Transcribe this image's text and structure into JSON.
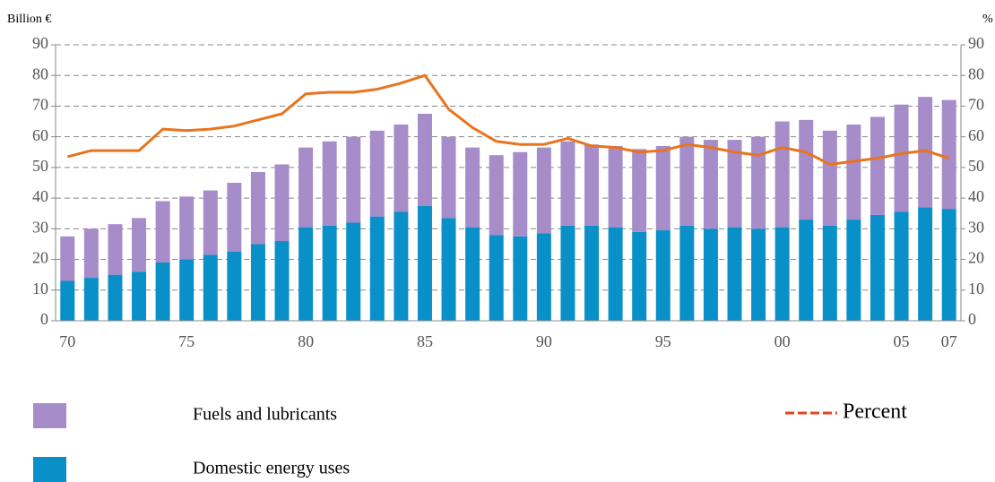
{
  "chart_data": {
    "type": "bar",
    "y_label": "Billion €",
    "y2_label": "%",
    "categories": [
      "70",
      null,
      null,
      null,
      null,
      "75",
      null,
      null,
      null,
      null,
      "80",
      null,
      null,
      null,
      null,
      "85",
      null,
      null,
      null,
      null,
      "90",
      null,
      null,
      null,
      null,
      "95",
      null,
      null,
      null,
      null,
      "00",
      null,
      null,
      null,
      null,
      "05",
      null,
      "07"
    ],
    "series": [
      {
        "name": "Domestic energy uses",
        "color": "#0a90c8",
        "values": [
          13,
          14,
          15,
          16,
          19,
          20,
          21.5,
          22.5,
          25,
          26,
          30.5,
          31,
          32,
          34,
          35.5,
          37.5,
          33.5,
          30.5,
          28,
          27.5,
          28.5,
          31,
          31,
          30.5,
          29,
          29.5,
          31,
          30,
          30.5,
          30,
          30.5,
          33,
          31,
          33,
          34.5,
          35.5,
          37,
          36.5
        ]
      },
      {
        "name": "Fuels and lubricants",
        "color": "#a68cc9",
        "values": [
          14.5,
          16,
          16.5,
          17.5,
          20,
          20.5,
          21,
          22.5,
          23.5,
          25,
          26,
          27.5,
          28,
          28,
          28.5,
          30,
          26.5,
          26,
          26,
          27.5,
          28,
          27.5,
          26.5,
          26.5,
          27,
          27.5,
          29,
          29,
          28.5,
          30,
          34.5,
          32.5,
          31,
          31,
          32,
          35,
          36,
          35.5
        ]
      },
      {
        "name": "Percent",
        "type": "line",
        "axis": "y2",
        "color": "#e8741e",
        "values": [
          53.5,
          55.5,
          55.5,
          55.5,
          62.5,
          62,
          62.5,
          63.5,
          65.5,
          67.5,
          74,
          74.5,
          74.5,
          75.5,
          77.5,
          80,
          69,
          63,
          58.5,
          57.5,
          57.5,
          59.5,
          57,
          56.5,
          55,
          55.5,
          57.5,
          56.5,
          55,
          54,
          56.5,
          55,
          51,
          52,
          53,
          54.5,
          55.5,
          53
        ]
      }
    ],
    "ylim": [
      0,
      90
    ],
    "yticks": [
      0,
      10,
      20,
      30,
      40,
      50,
      60,
      70,
      80,
      90
    ],
    "y2lim": [
      0,
      90
    ],
    "y2ticks": [
      0,
      10,
      20,
      30,
      40,
      50,
      60,
      70,
      80,
      90
    ],
    "grid": true
  }
}
